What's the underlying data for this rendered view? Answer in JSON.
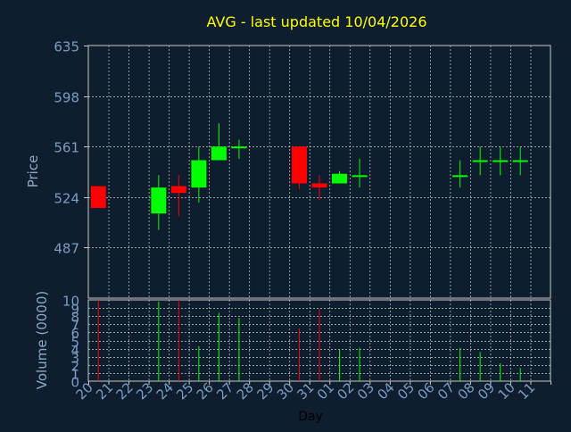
{
  "chart_data": {
    "type": "candlestick",
    "title": "AVG - last updated 10/04/2026",
    "xlabel": "Day",
    "price_panel": {
      "ylabel": "Price",
      "ylim": [
        450,
        635
      ],
      "y_ticks": [
        635,
        598,
        561,
        524,
        487
      ]
    },
    "volume_panel": {
      "ylabel": "Volume (0000)",
      "ylim": [
        0,
        10
      ],
      "y_ticks": [
        10,
        9,
        8,
        7,
        6,
        5,
        4,
        3,
        2,
        1,
        0
      ]
    },
    "x_ticks": [
      "20",
      "21",
      "22",
      "23",
      "24",
      "25",
      "26",
      "27",
      "28",
      "29",
      "30",
      "31",
      "01",
      "02",
      "03",
      "04",
      "05",
      "06",
      "07",
      "08",
      "09",
      "10",
      "11"
    ],
    "candles": [
      {
        "day": "20",
        "open": 532,
        "high": 532,
        "low": 516,
        "close": 516,
        "volume": 10
      },
      {
        "day": "23",
        "open": 512,
        "high": 540,
        "low": 500,
        "close": 531,
        "volume": 9.8
      },
      {
        "day": "24",
        "open": 532,
        "high": 540,
        "low": 510,
        "close": 527,
        "volume": 10
      },
      {
        "day": "25",
        "open": 531,
        "high": 561,
        "low": 520,
        "close": 551,
        "volume": 4.3
      },
      {
        "day": "26",
        "open": 551,
        "high": 578,
        "low": 551,
        "close": 561,
        "volume": 8.4
      },
      {
        "day": "27",
        "open": 560,
        "high": 566,
        "low": 552,
        "close": 561,
        "volume": 7.8
      },
      {
        "day": "30",
        "open": 561,
        "high": 561,
        "low": 530,
        "close": 534,
        "volume": 6.5
      },
      {
        "day": "31",
        "open": 534,
        "high": 540,
        "low": 522,
        "close": 531,
        "volume": 8.9
      },
      {
        "day": "01",
        "open": 534,
        "high": 543,
        "low": 534,
        "close": 541,
        "volume": 3.9
      },
      {
        "day": "02",
        "open": 539,
        "high": 552,
        "low": 531,
        "close": 540,
        "volume": 4.1
      },
      {
        "day": "07",
        "open": 539,
        "high": 551,
        "low": 531,
        "close": 540,
        "volume": 4.1
      },
      {
        "day": "08",
        "open": 550,
        "high": 561,
        "low": 540,
        "close": 551,
        "volume": 3.6
      },
      {
        "day": "09",
        "open": 550,
        "high": 561,
        "low": 540,
        "close": 551,
        "volume": 2.2
      },
      {
        "day": "10",
        "open": 550,
        "high": 561,
        "low": 540,
        "close": 551,
        "volume": 1.6
      }
    ],
    "grid": true
  },
  "colors": {
    "background": "#0f1e2e",
    "title": "#ffff00",
    "axis_text": "#7a9cc4",
    "axis_title": "#8fa8c8",
    "grid": "#c8c8c8",
    "up": "#00ff00",
    "down": "#ff0000"
  }
}
